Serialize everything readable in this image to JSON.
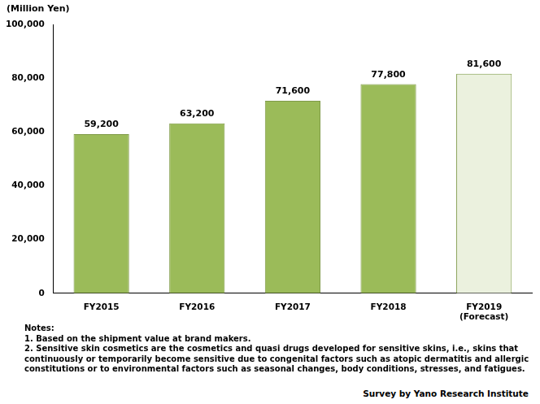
{
  "chart_data": {
    "type": "bar",
    "y_label": "(Million Yen)",
    "categories": [
      "FY2015",
      "FY2016",
      "FY2017",
      "FY2018",
      "FY2019\n(Forecast)"
    ],
    "values": [
      59200,
      63200,
      71600,
      77800,
      81600
    ],
    "value_labels": [
      "59,200",
      "63,200",
      "71,600",
      "77,800",
      "81,600"
    ],
    "colors": [
      "#9bbb59",
      "#9bbb59",
      "#9bbb59",
      "#9bbb59",
      "#ebf1de"
    ],
    "ylim": [
      0,
      100000
    ],
    "yticks": [
      0,
      {
        "value": 20000,
        "label": "20,000"
      },
      {
        "value": 40000,
        "label": "40,000"
      },
      {
        "value": 60000,
        "label": "60,000"
      },
      {
        "value": 80000,
        "label": "80,000"
      },
      {
        "value": 100000,
        "label": "100,000"
      }
    ],
    "grid": false,
    "data_labels": true,
    "notes": [
      "Notes:",
      "1. Based on the shipment value at brand makers.",
      "2. Sensitive skin cosmetics are the cosmetics and quasi drugs developed for sensitive skins, i.e., skins that continuously or temporarily become sensitive due to congenital factors such as atopic dermatitis and allergic constitutions or to environmental factors such as seasonal changes, body conditions, stresses, and fatigues."
    ],
    "source": "Survey by Yano Research Institute"
  }
}
